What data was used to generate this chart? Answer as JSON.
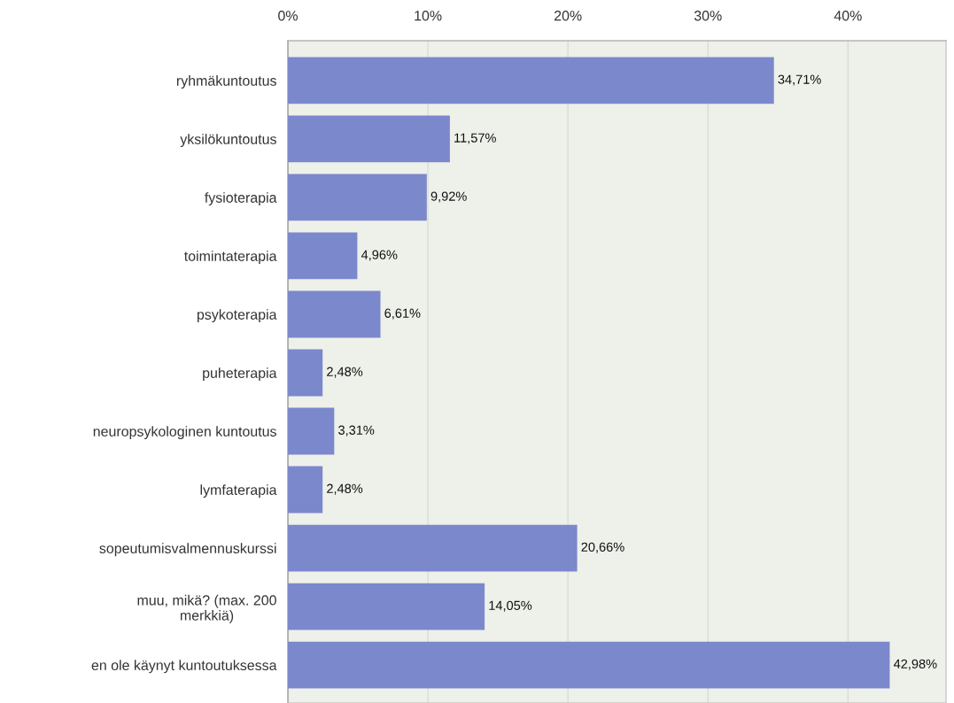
{
  "chart_data": {
    "type": "bar",
    "orientation": "horizontal",
    "categories": [
      "ryhmäkuntoutus",
      "yksilökuntoutus",
      "fysioterapia",
      "toimintaterapia",
      "psykoterapia",
      "puheterapia",
      "neuropsykologinen kuntoutus",
      "lymfaterapia",
      "sopeutumisvalmennuskurssi",
      "muu, mikä? (max. 200\nmerkkiä)",
      "en ole käynyt kuntoutuksessa"
    ],
    "values": [
      34.71,
      11.57,
      9.92,
      4.96,
      6.61,
      2.48,
      3.31,
      2.48,
      20.66,
      14.05,
      42.98
    ],
    "value_labels": [
      "34,71%",
      "11,57%",
      "9,92%",
      "4,96%",
      "6,61%",
      "2,48%",
      "3,31%",
      "2,48%",
      "20,66%",
      "14,05%",
      "42,98%"
    ],
    "color": "#7c88cc",
    "xlim": [
      0,
      47
    ],
    "xticks": [
      {
        "value": 0,
        "label": "0%"
      },
      {
        "value": 10,
        "label": "10%"
      },
      {
        "value": 20,
        "label": "20%"
      },
      {
        "value": 30,
        "label": "30%"
      },
      {
        "value": 40,
        "label": "40%"
      }
    ],
    "grid": "x",
    "legend": false
  }
}
